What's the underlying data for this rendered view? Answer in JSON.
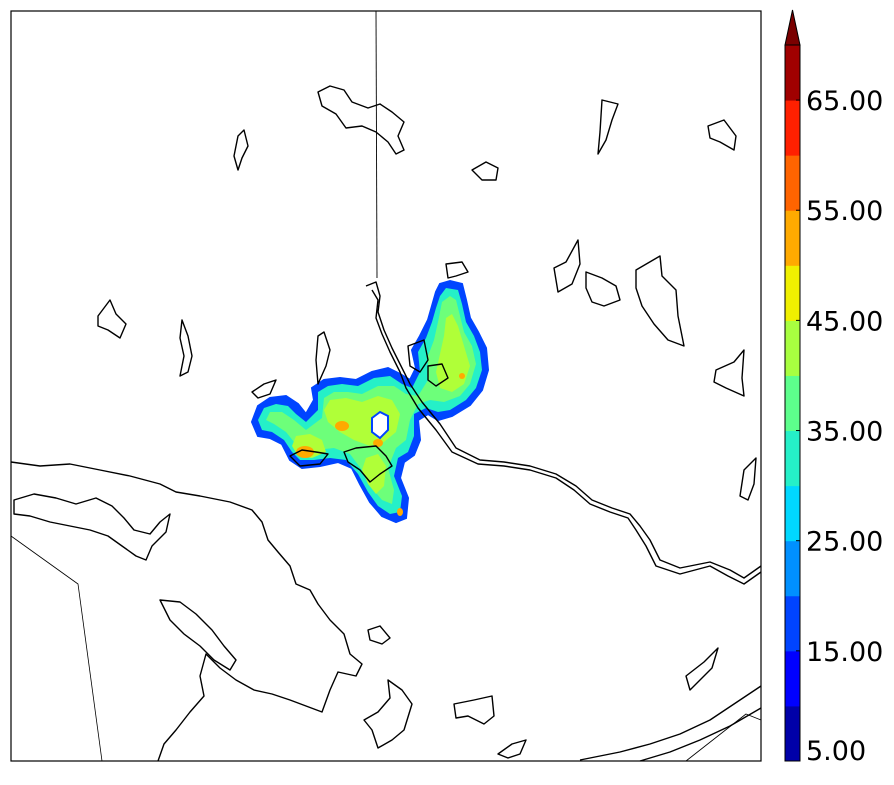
{
  "colorbar": {
    "ticks": [
      "5.00",
      "15.00",
      "25.00",
      "35.00",
      "45.00",
      "55.00",
      "65.00"
    ],
    "extend": "max",
    "levels": [
      5,
      10,
      15,
      20,
      25,
      30,
      35,
      40,
      45,
      50,
      55,
      60,
      65,
      70
    ],
    "colors": [
      "#0000a8",
      "#0000ff",
      "#0044ff",
      "#0090ff",
      "#00d8ff",
      "#25f0c8",
      "#5dff8c",
      "#a8ff40",
      "#f0f000",
      "#ffaa00",
      "#ff6400",
      "#ff2000",
      "#a00000"
    ],
    "extend_color": "#7a0000"
  },
  "map": {
    "field_colors": {
      "edge": "#0044ff",
      "ring": "#25f0c8",
      "body": "#6dff7a",
      "core": "#b0ff38",
      "hot": "#ffaa00"
    }
  }
}
